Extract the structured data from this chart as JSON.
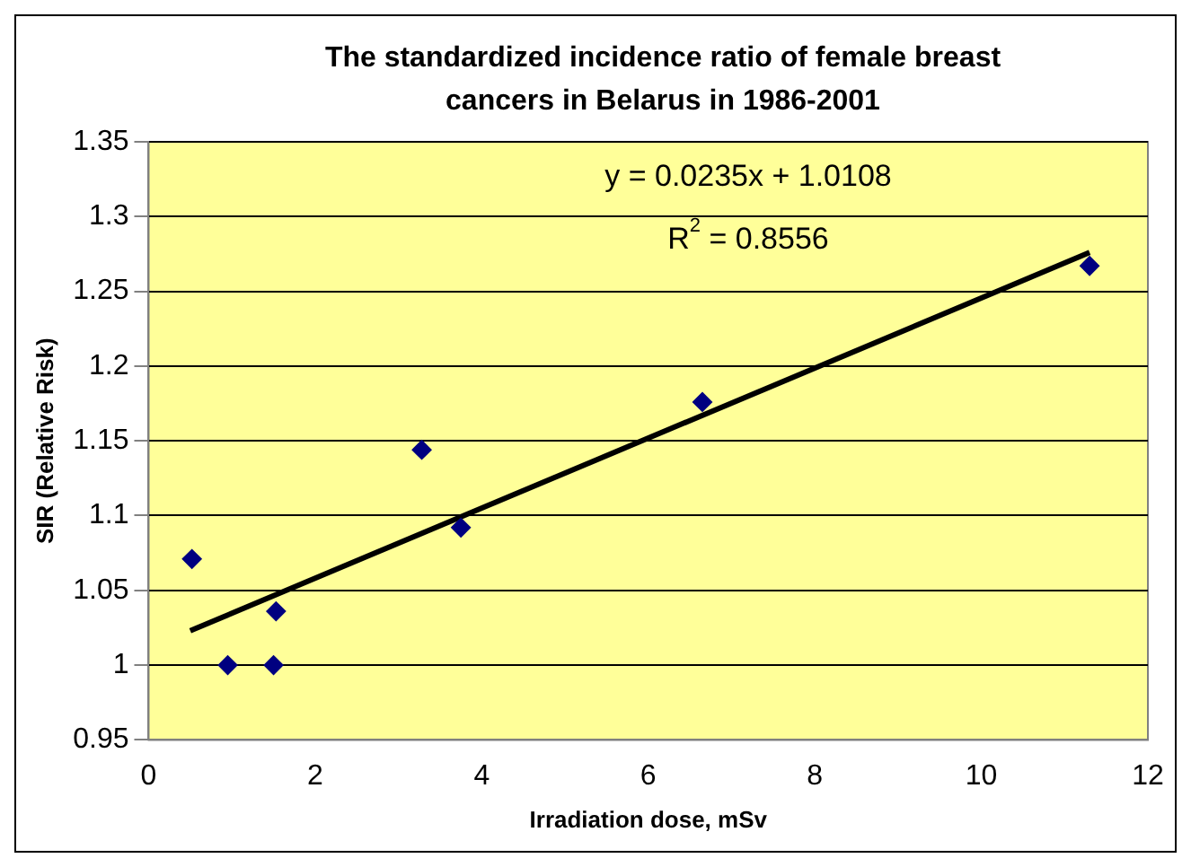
{
  "chart_data": {
    "type": "scatter",
    "title": "The standardized incidence ratio of female breast cancers in Belarus in 1986-2001",
    "xlabel": "Irradiation dose, mSv",
    "ylabel": "SIR (Relative Risk)",
    "series": [
      {
        "color": "#000080",
        "marker": "diamond",
        "x": [
          0.52,
          0.95,
          1.5,
          1.53,
          3.28,
          3.75,
          6.65,
          11.3
        ],
        "values": [
          1.071,
          1.0,
          1.0,
          1.036,
          1.144,
          1.092,
          1.176,
          1.267
        ]
      },
      {
        "type": "line",
        "color": "#000000",
        "marker": "none",
        "line_style": "solid",
        "x": [
          0.5,
          11.3
        ],
        "values": [
          1.023,
          1.276
        ]
      }
    ],
    "annotations": [
      "y = 0.0235x + 1.0108",
      "R$^{2}$ = 0.8556"
    ],
    "xlim": [
      0,
      12
    ],
    "xticks": [
      0,
      2,
      4,
      6,
      8,
      10,
      12
    ],
    "ylim": [
      0.95,
      1.35
    ],
    "yticks": [
      0.95,
      1,
      1.05,
      1.1,
      1.15,
      1.2,
      1.25,
      1.3,
      1.35
    ],
    "grid": "y",
    "legend": false
  }
}
